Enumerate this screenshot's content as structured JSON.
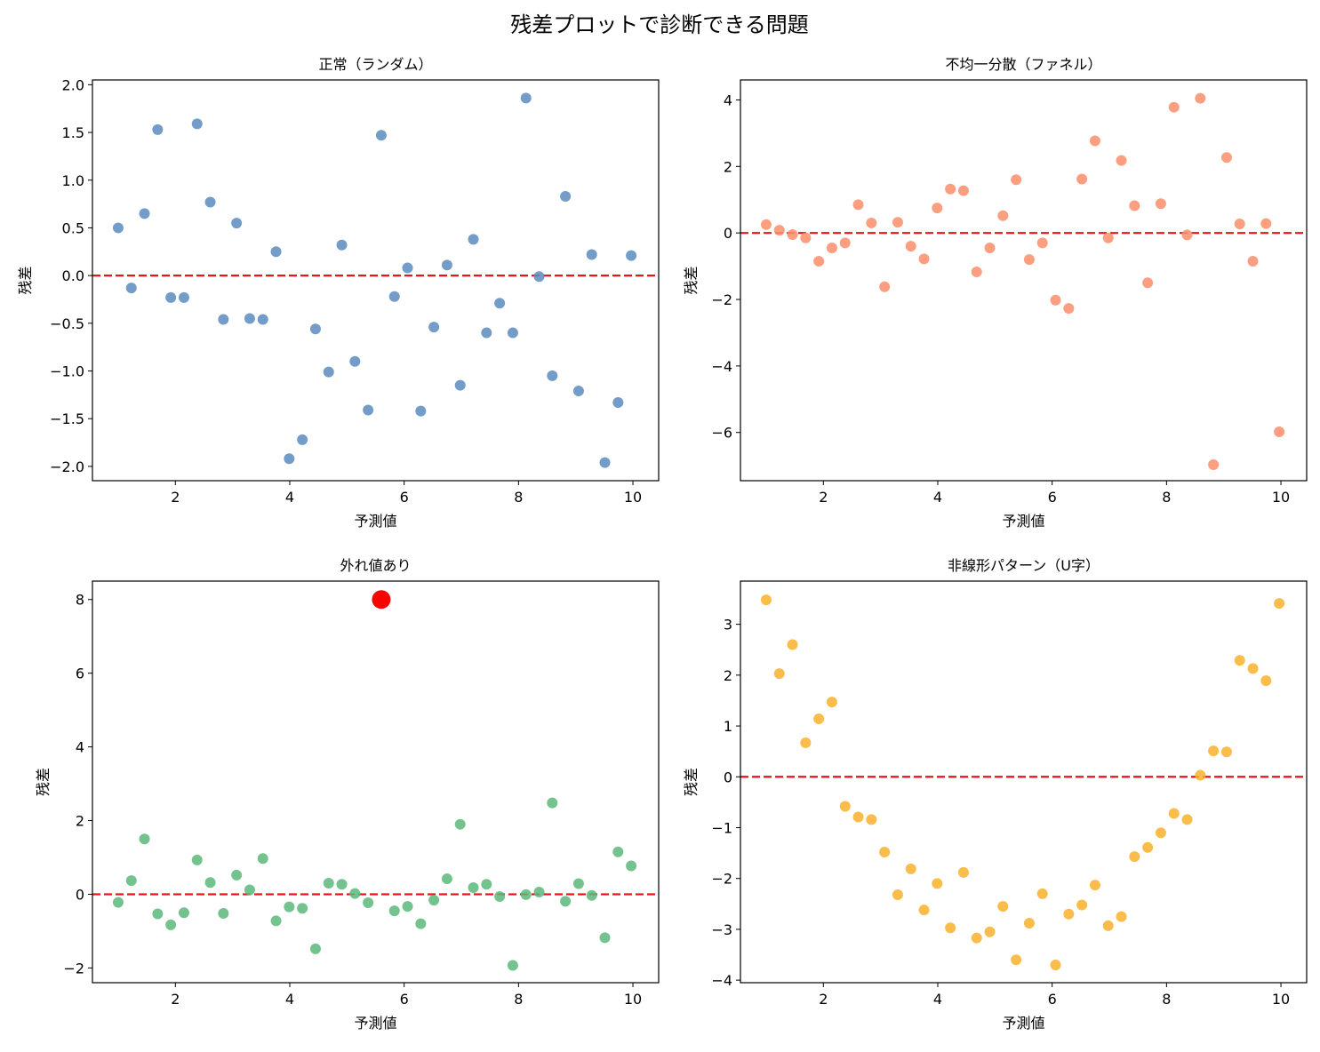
{
  "figure": {
    "suptitle": "残差プロットで診断できる問題"
  },
  "colors": {
    "zero_line": "#e8161b",
    "outlier": "#ff0000"
  },
  "chart_data": [
    {
      "type": "scatter",
      "title": "正常（ランダム）",
      "xlabel": "予測値",
      "ylabel": "残差",
      "xlim": [
        0.55,
        10.45
      ],
      "ylim": [
        -2.15,
        2.05
      ],
      "xticks": [
        2,
        4,
        6,
        8,
        10
      ],
      "yticks": [
        -2.0,
        -1.5,
        -1.0,
        -0.5,
        0.0,
        0.5,
        1.0,
        1.5,
        2.0
      ],
      "ytick_decimals": 1,
      "color": "#5b8bbf",
      "hline": 0,
      "x": [
        1.0,
        1.23,
        1.46,
        1.69,
        1.92,
        2.15,
        2.38,
        2.61,
        2.84,
        3.07,
        3.3,
        3.53,
        3.76,
        3.99,
        4.22,
        4.45,
        4.68,
        4.91,
        5.14,
        5.37,
        5.6,
        5.83,
        6.06,
        6.29,
        6.52,
        6.75,
        6.98,
        7.21,
        7.44,
        7.67,
        7.9,
        8.13,
        8.36,
        8.59,
        8.82,
        9.05,
        9.28,
        9.51,
        9.74,
        9.97
      ],
      "y": [
        0.5,
        -0.13,
        0.65,
        1.53,
        -0.23,
        -0.23,
        1.59,
        0.77,
        -0.46,
        0.55,
        -0.45,
        -0.46,
        0.25,
        -1.92,
        -1.72,
        -0.56,
        -1.01,
        0.32,
        -0.9,
        -1.41,
        1.47,
        -0.22,
        0.08,
        -1.42,
        -0.54,
        0.11,
        -1.15,
        0.38,
        -0.6,
        -0.29,
        -0.6,
        1.86,
        -0.01,
        -1.05,
        0.83,
        -1.21,
        0.22,
        -1.96,
        -1.33,
        0.21
      ]
    },
    {
      "type": "scatter",
      "title": "不均一分散（ファネル）",
      "xlabel": "予測値",
      "ylabel": "残差",
      "xlim": [
        0.55,
        10.45
      ],
      "ylim": [
        -7.45,
        4.6
      ],
      "xticks": [
        2,
        4,
        6,
        8,
        10
      ],
      "yticks": [
        -6,
        -4,
        -2,
        0,
        2,
        4
      ],
      "ytick_decimals": 0,
      "color": "#fb8e6b",
      "hline": 0,
      "x": [
        1.0,
        1.23,
        1.46,
        1.69,
        1.92,
        2.15,
        2.38,
        2.61,
        2.84,
        3.07,
        3.3,
        3.53,
        3.76,
        3.99,
        4.22,
        4.45,
        4.68,
        4.91,
        5.14,
        5.37,
        5.6,
        5.83,
        6.06,
        6.29,
        6.52,
        6.75,
        6.98,
        7.21,
        7.44,
        7.67,
        7.9,
        8.13,
        8.36,
        8.59,
        8.82,
        9.05,
        9.28,
        9.51,
        9.74,
        9.97
      ],
      "y": [
        0.25,
        0.08,
        -0.05,
        -0.15,
        -0.85,
        -0.45,
        -0.3,
        0.85,
        0.3,
        -1.62,
        0.32,
        -0.4,
        -0.78,
        0.75,
        1.32,
        1.27,
        -1.17,
        -0.45,
        0.52,
        1.6,
        -0.8,
        -0.3,
        -2.02,
        -2.27,
        1.62,
        2.77,
        -0.15,
        2.18,
        0.82,
        -1.5,
        0.88,
        3.78,
        -0.06,
        4.05,
        -6.97,
        2.27,
        0.27,
        -0.85,
        0.28,
        -5.98
      ]
    },
    {
      "type": "scatter",
      "title": "外れ値あり",
      "xlabel": "予測値",
      "ylabel": "残差",
      "xlim": [
        0.55,
        10.45
      ],
      "ylim": [
        -2.4,
        8.5
      ],
      "xticks": [
        2,
        4,
        6,
        8,
        10
      ],
      "yticks": [
        -2,
        0,
        2,
        4,
        6,
        8
      ],
      "ytick_decimals": 0,
      "color": "#5cb87b",
      "hline": 0,
      "x": [
        1.0,
        1.23,
        1.46,
        1.69,
        1.92,
        2.15,
        2.38,
        2.61,
        2.84,
        3.07,
        3.3,
        3.53,
        3.76,
        3.99,
        4.22,
        4.45,
        4.68,
        4.91,
        5.14,
        5.37,
        5.6,
        5.83,
        6.06,
        6.29,
        6.52,
        6.75,
        6.98,
        7.21,
        7.44,
        7.67,
        7.9,
        8.13,
        8.36,
        8.59,
        8.82,
        9.05,
        9.28,
        9.51,
        9.74,
        9.97
      ],
      "y": [
        -0.22,
        0.37,
        1.5,
        -0.53,
        -0.83,
        -0.5,
        0.93,
        0.32,
        -0.52,
        0.52,
        0.12,
        0.97,
        -0.72,
        -0.34,
        -0.38,
        -1.48,
        0.3,
        0.27,
        0.02,
        -0.23,
        8.0,
        -0.45,
        -0.33,
        -0.8,
        -0.16,
        0.42,
        1.9,
        0.18,
        0.27,
        -0.06,
        -1.93,
        -0.01,
        0.06,
        2.48,
        -0.19,
        0.29,
        -0.03,
        -1.18,
        1.15,
        0.77
      ],
      "outlier": {
        "x": 5.6,
        "y": 8.0
      }
    },
    {
      "type": "scatter",
      "title": "非線形パターン（U字）",
      "xlabel": "予測値",
      "ylabel": "残差",
      "xlim": [
        0.55,
        10.45
      ],
      "ylim": [
        -4.05,
        3.85
      ],
      "xticks": [
        2,
        4,
        6,
        8,
        10
      ],
      "yticks": [
        -4,
        -3,
        -2,
        -1,
        0,
        1,
        2,
        3
      ],
      "ytick_decimals": 0,
      "color": "#f9b02a",
      "hline": 0,
      "x": [
        1.0,
        1.23,
        1.46,
        1.69,
        1.92,
        2.15,
        2.38,
        2.61,
        2.84,
        3.07,
        3.3,
        3.53,
        3.76,
        3.99,
        4.22,
        4.45,
        4.68,
        4.91,
        5.14,
        5.37,
        5.6,
        5.83,
        6.06,
        6.29,
        6.52,
        6.75,
        6.98,
        7.21,
        7.44,
        7.67,
        7.9,
        8.13,
        8.36,
        8.59,
        8.82,
        9.05,
        9.28,
        9.51,
        9.74,
        9.97
      ],
      "y": [
        3.48,
        2.03,
        2.6,
        0.67,
        1.14,
        1.47,
        -0.58,
        -0.79,
        -0.84,
        -1.48,
        -2.32,
        -1.81,
        -2.62,
        -2.1,
        -2.97,
        -1.88,
        -3.17,
        -3.05,
        -2.55,
        -3.6,
        -2.88,
        -2.3,
        -3.7,
        -2.7,
        -2.52,
        -2.13,
        -2.93,
        -2.75,
        -1.57,
        -1.39,
        -1.1,
        -0.72,
        -0.84,
        0.03,
        0.51,
        0.49,
        2.29,
        2.13,
        1.89,
        3.41
      ]
    }
  ]
}
